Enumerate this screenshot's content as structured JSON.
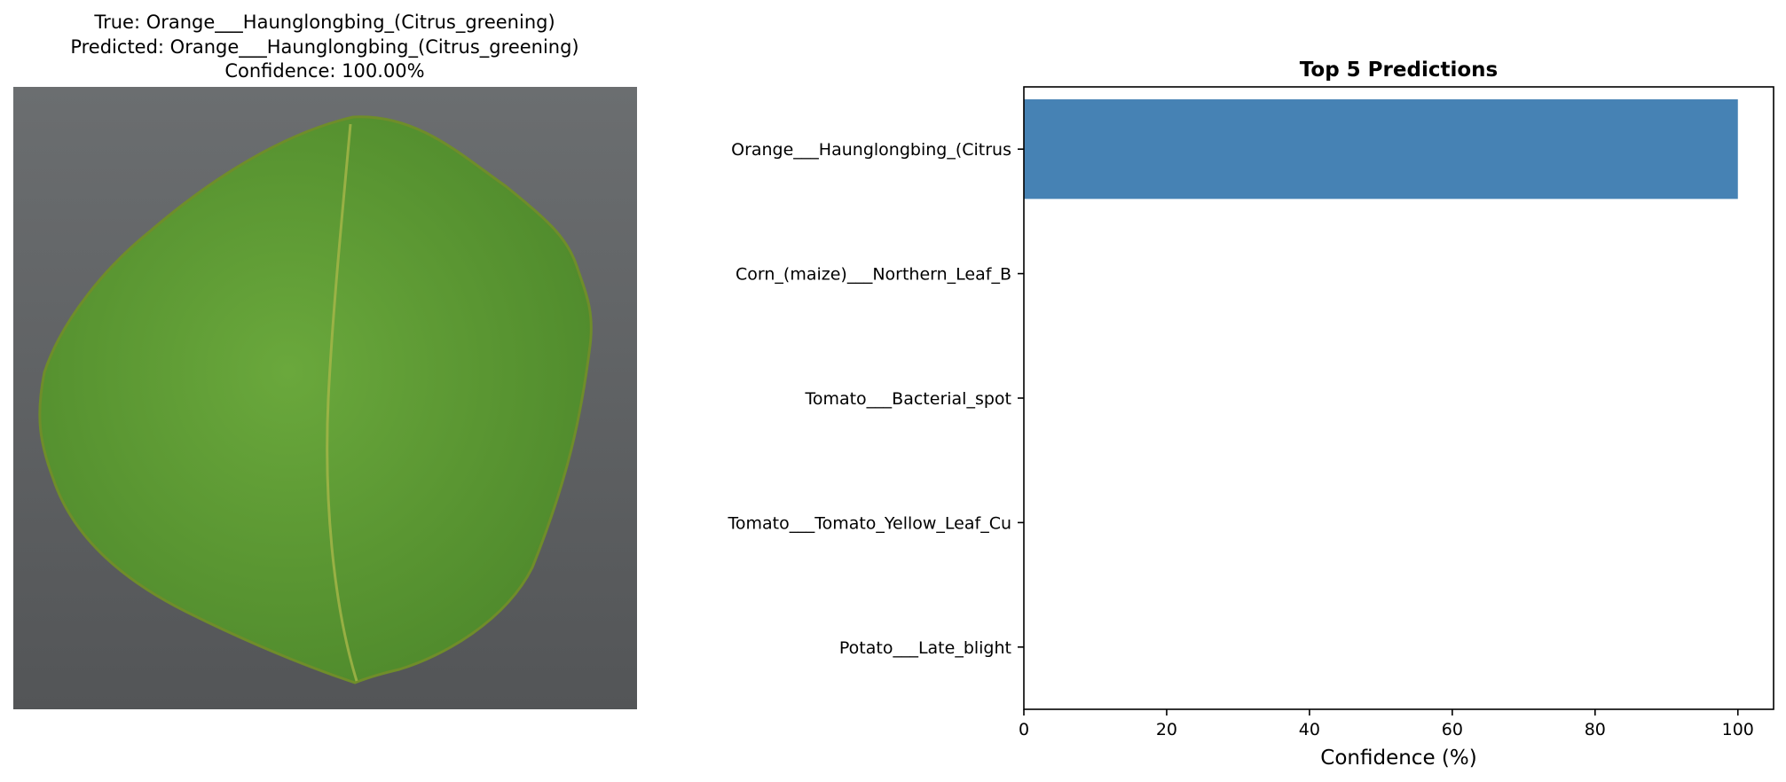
{
  "image_panel": {
    "title_true": "True: Orange___Haunglongbing_(Citrus_greening)",
    "title_predicted": "Predicted: Orange___Haunglongbing_(Citrus_greening)",
    "title_confidence": "Confidence: 100.00%",
    "background_color": "#5f6163",
    "leaf_color": "#5e9a34"
  },
  "chart_data": {
    "type": "bar",
    "orientation": "horizontal",
    "title": "Top 5 Predictions",
    "xlabel": "Confidence (%)",
    "ylabel": "",
    "categories": [
      "Orange___Haunglongbing_(Citrus",
      "Corn_(maize)___Northern_Leaf_B",
      "Tomato___Bacterial_spot",
      "Tomato___Tomato_Yellow_Leaf_Cu",
      "Potato___Late_blight"
    ],
    "values": [
      100.0,
      0.0,
      0.0,
      0.0,
      0.0
    ],
    "xlim": [
      0,
      105
    ],
    "xticks": [
      0,
      20,
      40,
      60,
      80,
      100
    ],
    "grid": false,
    "bar_color": "#4682b4"
  }
}
